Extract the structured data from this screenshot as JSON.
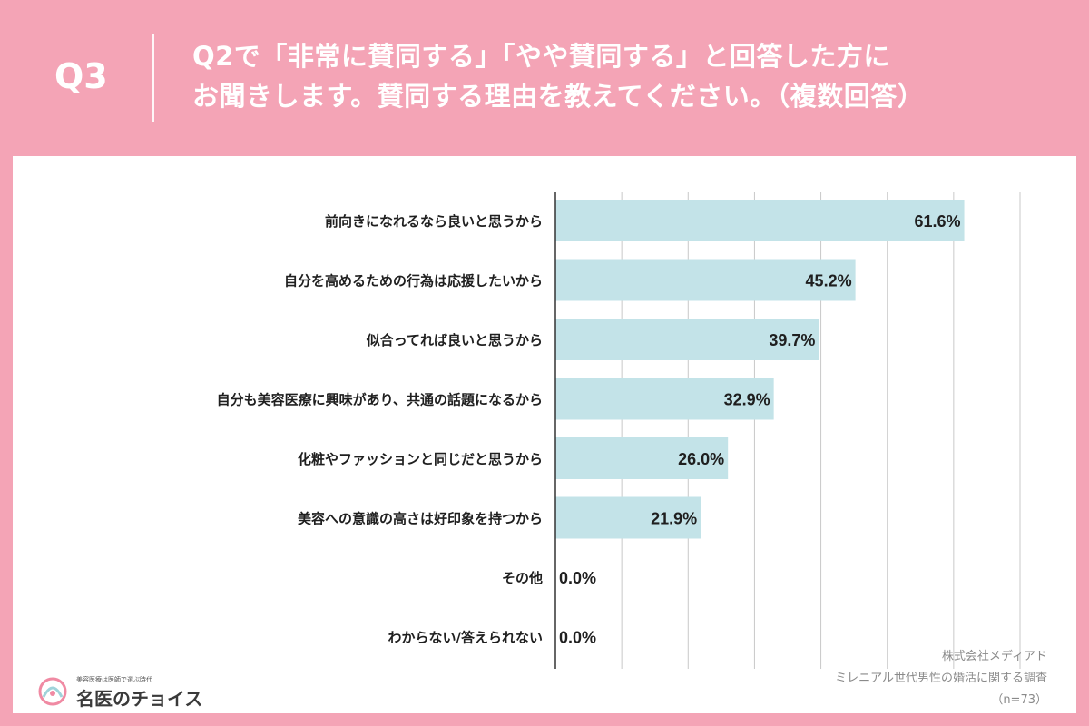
{
  "header": {
    "qnum": "Q3",
    "question_line1": "Q2で「非常に賛同する」「やや賛同する」と回答した方に",
    "question_line2": "お聞きします。賛同する理由を教えてください。（複数回答）"
  },
  "colors": {
    "background": "#f4a4b6",
    "panel": "#ffffff",
    "bar": "#c3e3e8",
    "text": "#1f1f1f",
    "grid": "#c8c8c8"
  },
  "chart_data": {
    "type": "bar",
    "orientation": "horizontal",
    "categories": [
      "前向きになれるなら良いと思うから",
      "自分を高めるための行為は応援したいから",
      "似合ってれば良いと思うから",
      "自分も美容医療に興味があり、共通の話題になるから",
      "化粧やファッションと同じだと思うから",
      "美容への意識の高さは好印象を持つから",
      "その他",
      "わからない/答えられない"
    ],
    "values": [
      61.6,
      45.2,
      39.7,
      32.9,
      26.0,
      21.9,
      0.0,
      0.0
    ],
    "value_labels": [
      "61.6%",
      "45.2%",
      "39.7%",
      "32.9%",
      "26.0%",
      "21.9%",
      "0.0%",
      "0.0%"
    ],
    "xlim": [
      0,
      70
    ],
    "grid": true
  },
  "source": {
    "company": "株式会社メディアド",
    "survey": "ミレニアル世代男性の婚活に関する調査",
    "n": "（n=73）"
  },
  "logo": {
    "tagline": "美容医療は医師で選ぶ時代",
    "name": "名医のチョイス",
    "icon": "logo-mark-icon"
  }
}
